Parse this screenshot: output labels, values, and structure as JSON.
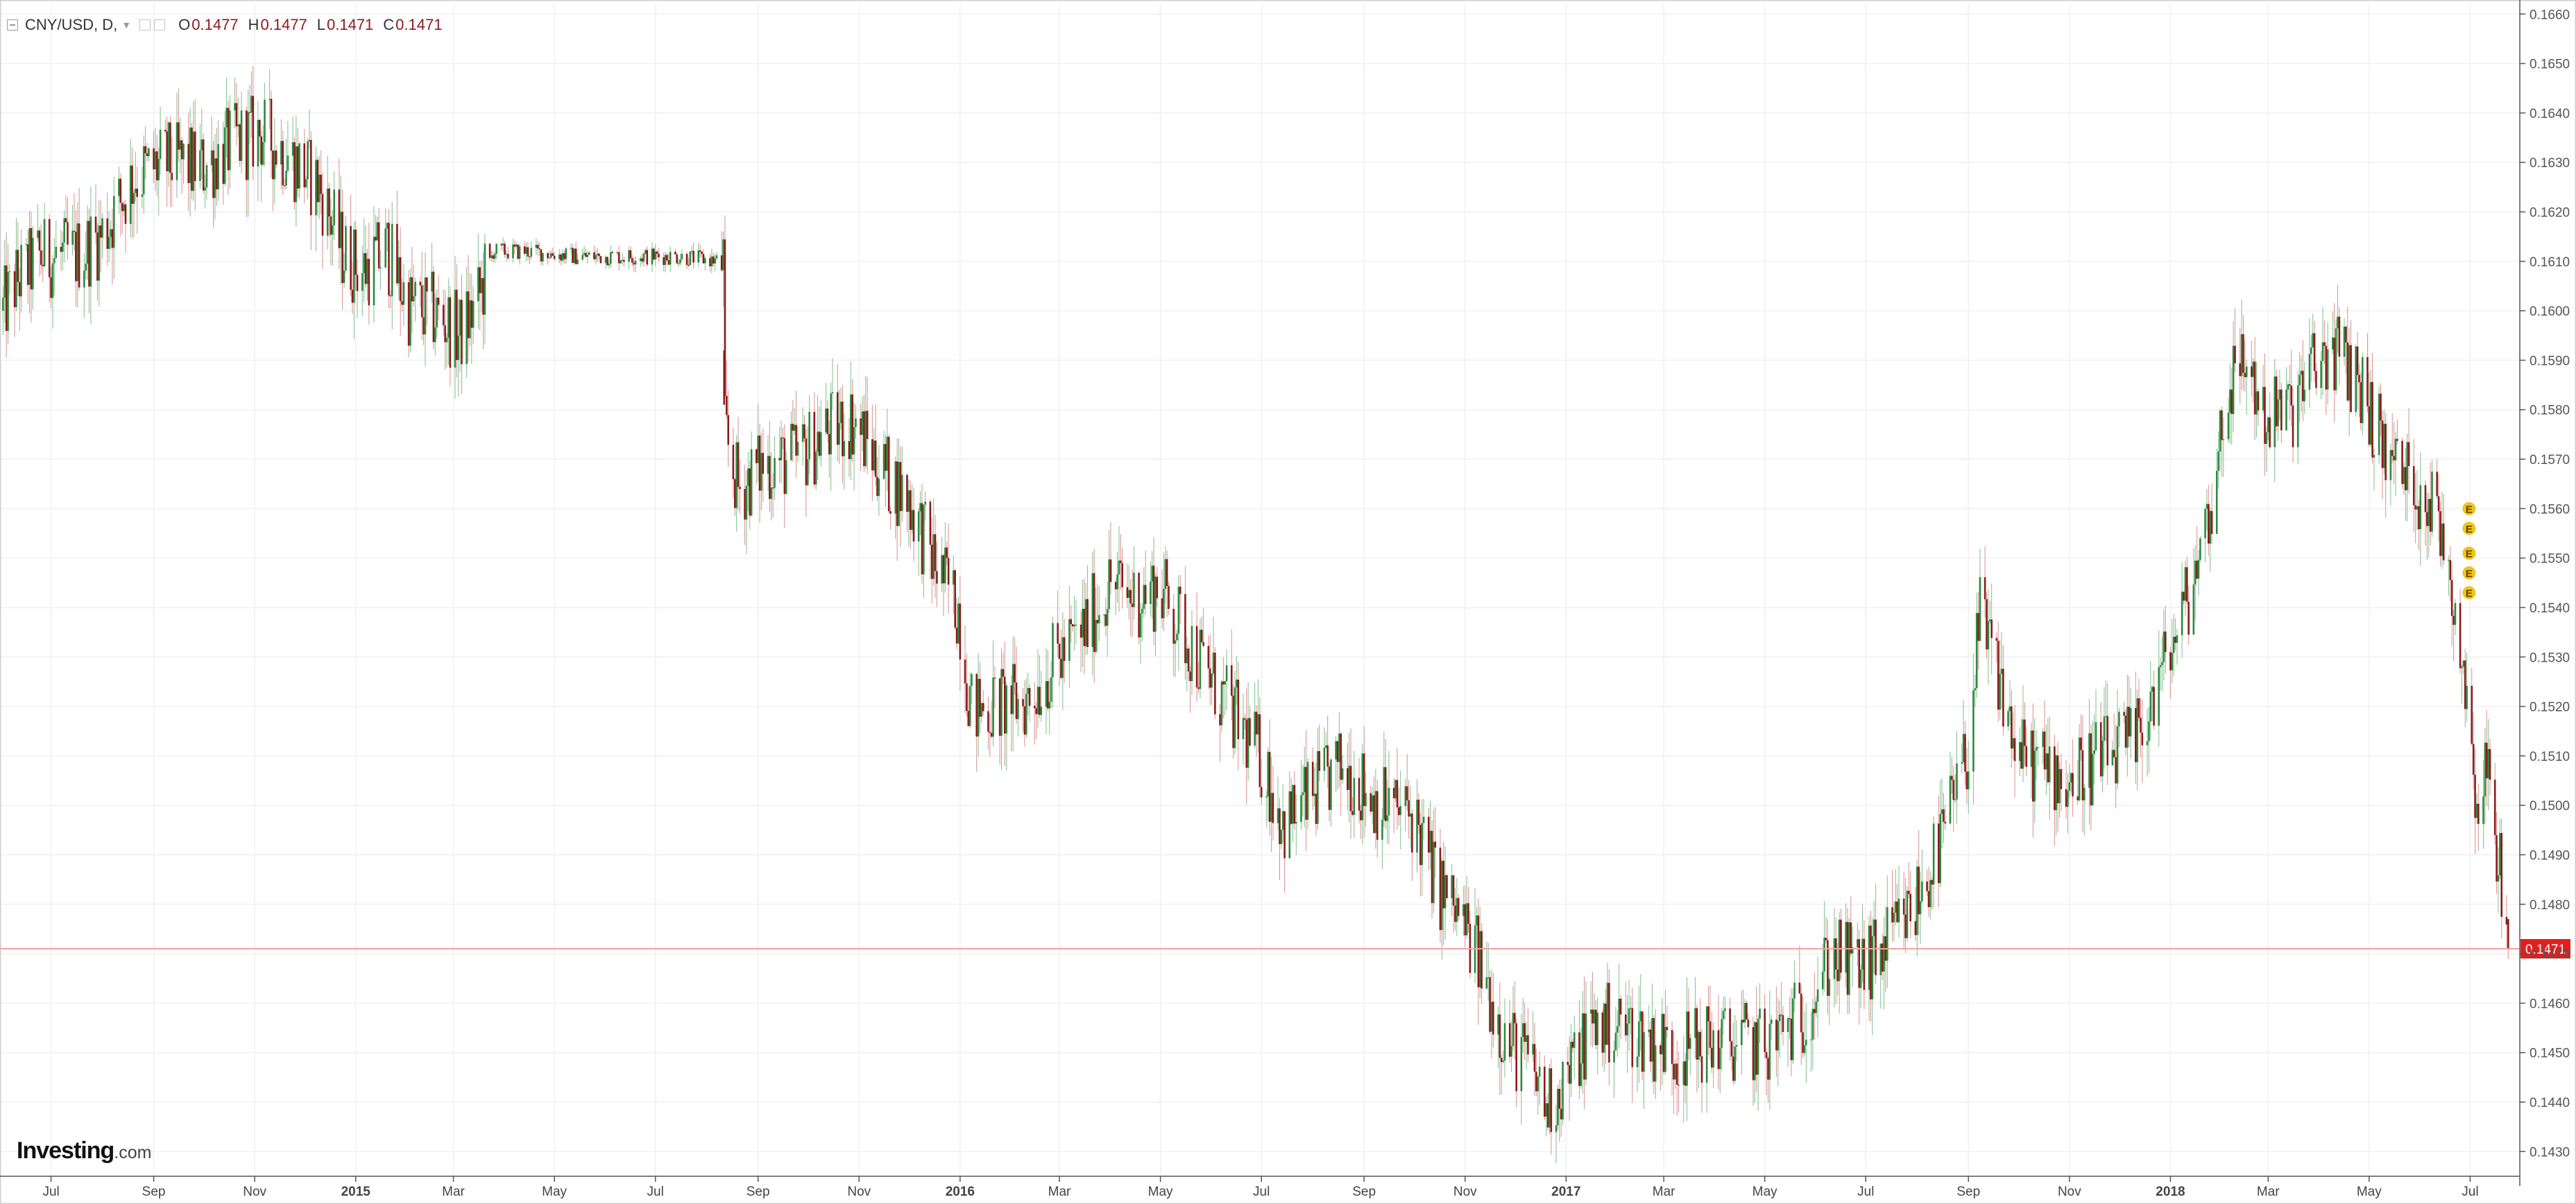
{
  "legend": {
    "symbol": "CNY/USD",
    "interval": "D",
    "open_label": "O",
    "open": "0.1477",
    "high_label": "H",
    "high": "0.1477",
    "low_label": "L",
    "low": "0.1471",
    "close_label": "C",
    "close": "0.1471"
  },
  "logo": {
    "name": "Investing",
    "tld": ".com"
  },
  "colors": {
    "up": "#2b8a3e",
    "down": "#8b1a1a",
    "price_line": "#f5a3a3",
    "price_badge": "#e0201f",
    "earnings_marker": "#f0c419",
    "grid": "#f0f0f0"
  },
  "chart_data": {
    "type": "candlestick",
    "title": "CNY/USD, D,",
    "ylim": [
      0.1425,
      0.1662
    ],
    "xlim": [
      "2014-06-01",
      "2018-07-31"
    ],
    "y_ticks": [
      "0.1430",
      "0.1440",
      "0.1450",
      "0.1460",
      "0.1470",
      "0.1480",
      "0.1490",
      "0.1500",
      "0.1510",
      "0.1520",
      "0.1530",
      "0.1540",
      "0.1550",
      "0.1560",
      "0.1570",
      "0.1580",
      "0.1590",
      "0.1600",
      "0.1610",
      "0.1620",
      "0.1630",
      "0.1640",
      "0.1650",
      "0.1660"
    ],
    "x_ticks": [
      {
        "label": "Jul",
        "date": "2014-07-01",
        "bold": false
      },
      {
        "label": "Sep",
        "date": "2014-09-01",
        "bold": false
      },
      {
        "label": "Nov",
        "date": "2014-11-01",
        "bold": false
      },
      {
        "label": "2015",
        "date": "2015-01-01",
        "bold": true
      },
      {
        "label": "Mar",
        "date": "2015-03-01",
        "bold": false
      },
      {
        "label": "May",
        "date": "2015-05-01",
        "bold": false
      },
      {
        "label": "Jul",
        "date": "2015-07-01",
        "bold": false
      },
      {
        "label": "Sep",
        "date": "2015-09-01",
        "bold": false
      },
      {
        "label": "Nov",
        "date": "2015-11-01",
        "bold": false
      },
      {
        "label": "2016",
        "date": "2016-01-01",
        "bold": true
      },
      {
        "label": "Mar",
        "date": "2016-03-01",
        "bold": false
      },
      {
        "label": "May",
        "date": "2016-05-01",
        "bold": false
      },
      {
        "label": "Jul",
        "date": "2016-07-01",
        "bold": false
      },
      {
        "label": "Sep",
        "date": "2016-09-01",
        "bold": false
      },
      {
        "label": "Nov",
        "date": "2016-11-01",
        "bold": false
      },
      {
        "label": "2017",
        "date": "2017-01-01",
        "bold": true
      },
      {
        "label": "Mar",
        "date": "2017-03-01",
        "bold": false
      },
      {
        "label": "May",
        "date": "2017-05-01",
        "bold": false
      },
      {
        "label": "Jul",
        "date": "2017-07-01",
        "bold": false
      },
      {
        "label": "Sep",
        "date": "2017-09-01",
        "bold": false
      },
      {
        "label": "Nov",
        "date": "2017-11-01",
        "bold": false
      },
      {
        "label": "2018",
        "date": "2018-01-01",
        "bold": true
      },
      {
        "label": "Mar",
        "date": "2018-03-01",
        "bold": false
      },
      {
        "label": "May",
        "date": "2018-05-01",
        "bold": false
      },
      {
        "label": "Jul",
        "date": "2018-07-01",
        "bold": false
      }
    ],
    "price_key_points": [
      [
        "2014-06-02",
        0.16
      ],
      [
        "2014-06-10",
        0.1606
      ],
      [
        "2014-06-25",
        0.1611
      ],
      [
        "2014-07-15",
        0.1611
      ],
      [
        "2014-07-31",
        0.1615
      ],
      [
        "2014-08-20",
        0.1627
      ],
      [
        "2014-09-10",
        0.163
      ],
      [
        "2014-10-01",
        0.1629
      ],
      [
        "2014-10-20",
        0.1634
      ],
      [
        "2014-11-05",
        0.1636
      ],
      [
        "2014-11-20",
        0.1632
      ],
      [
        "2014-12-10",
        0.1625
      ],
      [
        "2014-12-24",
        0.1612
      ],
      [
        "2015-01-05",
        0.1608
      ],
      [
        "2015-01-20",
        0.1612
      ],
      [
        "2015-02-02",
        0.1601
      ],
      [
        "2015-02-20",
        0.1599
      ],
      [
        "2015-03-05",
        0.1595
      ],
      [
        "2015-03-15",
        0.1601
      ],
      [
        "2015-03-25",
        0.1612
      ],
      [
        "2015-04-15",
        0.1612
      ],
      [
        "2015-05-15",
        0.1611
      ],
      [
        "2015-06-15",
        0.1611
      ],
      [
        "2015-07-15",
        0.1611
      ],
      [
        "2015-08-10",
        0.161
      ],
      [
        "2015-08-12",
        0.1575
      ],
      [
        "2015-08-20",
        0.1564
      ],
      [
        "2015-09-05",
        0.1569
      ],
      [
        "2015-09-25",
        0.157
      ],
      [
        "2015-10-10",
        0.1575
      ],
      [
        "2015-10-28",
        0.1578
      ],
      [
        "2015-11-15",
        0.1568
      ],
      [
        "2015-12-01",
        0.1562
      ],
      [
        "2015-12-15",
        0.155
      ],
      [
        "2015-12-31",
        0.154
      ],
      [
        "2016-01-08",
        0.1519
      ],
      [
        "2016-01-20",
        0.152
      ],
      [
        "2016-02-10",
        0.1521
      ],
      [
        "2016-02-25",
        0.1528
      ],
      [
        "2016-03-15",
        0.1535
      ],
      [
        "2016-04-01",
        0.1545
      ],
      [
        "2016-04-15",
        0.1542
      ],
      [
        "2016-05-01",
        0.1544
      ],
      [
        "2016-05-20",
        0.1532
      ],
      [
        "2016-06-10",
        0.152
      ],
      [
        "2016-06-30",
        0.151
      ],
      [
        "2016-07-15",
        0.1496
      ],
      [
        "2016-08-01",
        0.1502
      ],
      [
        "2016-08-20",
        0.1508
      ],
      [
        "2016-09-05",
        0.1502
      ],
      [
        "2016-09-20",
        0.1499
      ],
      [
        "2016-10-01",
        0.1498
      ],
      [
        "2016-10-15",
        0.1484
      ],
      [
        "2016-10-31",
        0.1476
      ],
      [
        "2016-11-10",
        0.1468
      ],
      [
        "2016-11-25",
        0.1453
      ],
      [
        "2016-12-10",
        0.1448
      ],
      [
        "2016-12-20",
        0.1439
      ],
      [
        "2017-01-05",
        0.1447
      ],
      [
        "2017-01-15",
        0.1455
      ],
      [
        "2017-02-01",
        0.1456
      ],
      [
        "2017-02-20",
        0.1453
      ],
      [
        "2017-03-10",
        0.145
      ],
      [
        "2017-03-25",
        0.1452
      ],
      [
        "2017-04-15",
        0.1452
      ],
      [
        "2017-05-01",
        0.1451
      ],
      [
        "2017-05-25",
        0.1458
      ],
      [
        "2017-06-10",
        0.147
      ],
      [
        "2017-06-20",
        0.1468
      ],
      [
        "2017-07-01",
        0.1467
      ],
      [
        "2017-07-15",
        0.1472
      ],
      [
        "2017-07-31",
        0.148
      ],
      [
        "2017-08-15",
        0.1492
      ],
      [
        "2017-08-31",
        0.151
      ],
      [
        "2017-09-08",
        0.1538
      ],
      [
        "2017-09-20",
        0.1525
      ],
      [
        "2017-10-01",
        0.151
      ],
      [
        "2017-10-15",
        0.1508
      ],
      [
        "2017-11-01",
        0.1505
      ],
      [
        "2017-11-20",
        0.151
      ],
      [
        "2017-12-10",
        0.1512
      ],
      [
        "2017-12-25",
        0.1525
      ],
      [
        "2018-01-10",
        0.154
      ],
      [
        "2018-01-25",
        0.156
      ],
      [
        "2018-02-05",
        0.1585
      ],
      [
        "2018-02-15",
        0.159
      ],
      [
        "2018-02-28",
        0.1578
      ],
      [
        "2018-03-15",
        0.158
      ],
      [
        "2018-03-31",
        0.159
      ],
      [
        "2018-04-10",
        0.1592
      ],
      [
        "2018-04-25",
        0.1586
      ],
      [
        "2018-05-10",
        0.1572
      ],
      [
        "2018-05-25",
        0.1566
      ],
      [
        "2018-06-10",
        0.156
      ],
      [
        "2018-06-15",
        0.1554
      ],
      [
        "2018-06-22",
        0.154
      ],
      [
        "2018-06-30",
        0.152
      ],
      [
        "2018-07-06",
        0.1498
      ],
      [
        "2018-07-10",
        0.151
      ],
      [
        "2018-07-18",
        0.149
      ],
      [
        "2018-07-24",
        0.1471
      ]
    ],
    "gap": {
      "from": "2015-08-10",
      "to": "2015-08-12"
    },
    "last_price": "0.1471",
    "earnings_markers": [
      {
        "label": "E",
        "date": "2018-06-27",
        "price": 0.156
      },
      {
        "label": "E",
        "date": "2018-06-27",
        "price": 0.1556
      },
      {
        "label": "E",
        "date": "2018-06-27",
        "price": 0.1551
      },
      {
        "label": "E",
        "date": "2018-06-27",
        "price": 0.1547
      },
      {
        "label": "E",
        "date": "2018-06-27",
        "price": 0.1543
      }
    ]
  }
}
